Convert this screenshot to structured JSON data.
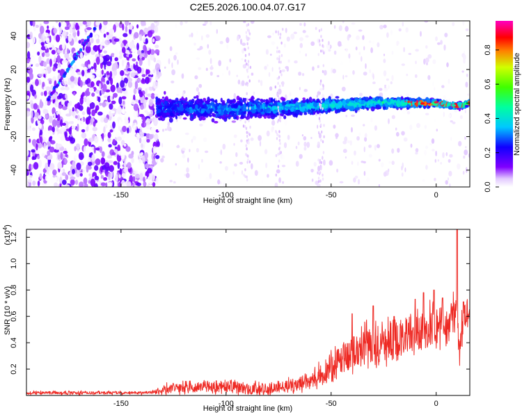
{
  "title": "C2E5.2026.100.04.07.G17",
  "colors": {
    "snr_line": "#ee2a24",
    "axis": "#000000",
    "background": "#ffffff"
  },
  "chart_data": [
    {
      "type": "heatmap",
      "xlabel": "Height of straight line (km)",
      "ylabel": "Frequency (Hz)",
      "xlim": [
        -195,
        16
      ],
      "ylim": [
        -50,
        49
      ],
      "xticks": [
        -150,
        -100,
        -50,
        0
      ],
      "yticks": [
        -40,
        -20,
        0,
        20,
        40
      ],
      "grid": false,
      "colorbar": {
        "label": "Normalized spectral amplitude",
        "range": [
          0,
          0.97
        ],
        "ticks": [
          0.0,
          0.2,
          0.4,
          0.6,
          0.8
        ],
        "colormap": "rainbow (purple-blue-cyan-green-yellow-red-magenta)"
      },
      "features": [
        {
          "name": "noisy region",
          "x_range": [
            -195,
            -132
          ],
          "freq_range": [
            -50,
            49
          ],
          "amplitude": "0.0-0.2"
        },
        {
          "name": "diagonal trace",
          "x_range": [
            -185,
            -162
          ],
          "freq_range": [
            2,
            45
          ],
          "amplitude": "0.2-0.4"
        },
        {
          "name": "central band",
          "x_range": [
            -133,
            16
          ],
          "freq_center": [
            [
              -130,
              -3
            ],
            [
              -100,
              -4
            ],
            [
              -60,
              -2
            ],
            [
              -30,
              0
            ],
            [
              0,
              0
            ],
            [
              10,
              -2
            ],
            [
              16,
              0
            ]
          ],
          "freq_halfwidth_start": 10,
          "freq_halfwidth_end": 2,
          "amplitude": "0.1-0.9"
        }
      ]
    },
    {
      "type": "line",
      "xlabel": "Height of straight line (km)",
      "ylabel": "SNR (10 * v/v)",
      "y_scale_note": "(x10",
      "y_scale_exp": "4",
      "xlim": [
        -195,
        16
      ],
      "ylim": [
        0,
        1.26
      ],
      "xticks": [
        -150,
        -100,
        -50,
        0
      ],
      "yticks": [
        0.2,
        0.4,
        0.6,
        0.8,
        1.0,
        1.2
      ],
      "grid": false,
      "series": [
        {
          "x": [
            -195,
            -180,
            -170,
            -160,
            -150,
            -140,
            -132,
            -128,
            -120,
            -115,
            -110,
            -105,
            -100,
            -95,
            -90,
            -85,
            -80,
            -75,
            -70,
            -65,
            -60,
            -55,
            -50,
            -45,
            -40,
            -35,
            -30,
            -25,
            -20,
            -15,
            -10,
            -5,
            0,
            5,
            8,
            10,
            11,
            12,
            14,
            16
          ],
          "y": [
            0.02,
            0.02,
            0.02,
            0.02,
            0.02,
            0.02,
            0.03,
            0.05,
            0.06,
            0.06,
            0.07,
            0.06,
            0.07,
            0.06,
            0.05,
            0.05,
            0.05,
            0.06,
            0.07,
            0.09,
            0.12,
            0.15,
            0.2,
            0.27,
            0.33,
            0.35,
            0.38,
            0.4,
            0.42,
            0.45,
            0.48,
            0.5,
            0.52,
            0.55,
            0.6,
            0.62,
            0.28,
            0.5,
            0.62,
            0.6
          ],
          "peaks": [
            [
              -40,
              0.62
            ],
            [
              -30,
              0.68
            ],
            [
              -20,
              0.6
            ],
            [
              -10,
              0.73
            ],
            [
              -6,
              0.78
            ],
            [
              -1,
              0.8
            ],
            [
              3,
              0.74
            ],
            [
              10,
              1.26
            ],
            [
              13,
              0.71
            ]
          ],
          "noise_amplitude": [
            [
              -195,
              0.01
            ],
            [
              -135,
              0.01
            ],
            [
              -130,
              0.03
            ],
            [
              -100,
              0.04
            ],
            [
              -60,
              0.05
            ],
            [
              -50,
              0.1
            ],
            [
              -30,
              0.14
            ],
            [
              0,
              0.14
            ],
            [
              16,
              0.1
            ]
          ]
        }
      ]
    }
  ]
}
